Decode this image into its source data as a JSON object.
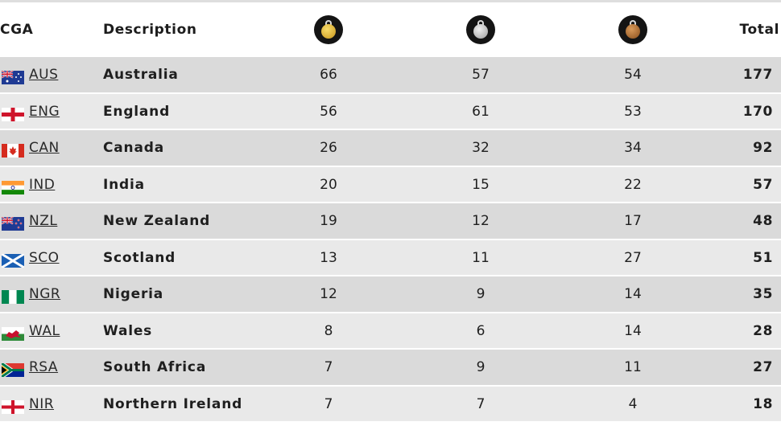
{
  "header": {
    "cga": "CGA",
    "description": "Description",
    "total": "Total",
    "gold_icon": "gold-medal-icon",
    "silver_icon": "silver-medal-icon",
    "bronze_icon": "bronze-medal-icon"
  },
  "rows": [
    {
      "code": "AUS",
      "country": "Australia",
      "gold": "66",
      "silver": "57",
      "bronze": "54",
      "total": "177",
      "flag": "australia-flag-icon"
    },
    {
      "code": "ENG",
      "country": "England",
      "gold": "56",
      "silver": "61",
      "bronze": "53",
      "total": "170",
      "flag": "england-flag-icon"
    },
    {
      "code": "CAN",
      "country": "Canada",
      "gold": "26",
      "silver": "32",
      "bronze": "34",
      "total": "92",
      "flag": "canada-flag-icon"
    },
    {
      "code": "IND",
      "country": "India",
      "gold": "20",
      "silver": "15",
      "bronze": "22",
      "total": "57",
      "flag": "india-flag-icon"
    },
    {
      "code": "NZL",
      "country": "New Zealand",
      "gold": "19",
      "silver": "12",
      "bronze": "17",
      "total": "48",
      "flag": "new-zealand-flag-icon"
    },
    {
      "code": "SCO",
      "country": "Scotland",
      "gold": "13",
      "silver": "11",
      "bronze": "27",
      "total": "51",
      "flag": "scotland-flag-icon"
    },
    {
      "code": "NGR",
      "country": "Nigeria",
      "gold": "12",
      "silver": "9",
      "bronze": "14",
      "total": "35",
      "flag": "nigeria-flag-icon"
    },
    {
      "code": "WAL",
      "country": "Wales",
      "gold": "8",
      "silver": "6",
      "bronze": "14",
      "total": "28",
      "flag": "wales-flag-icon"
    },
    {
      "code": "RSA",
      "country": "South Africa",
      "gold": "7",
      "silver": "9",
      "bronze": "11",
      "total": "27",
      "flag": "south-africa-flag-icon"
    },
    {
      "code": "NIR",
      "country": "Northern Ireland",
      "gold": "7",
      "silver": "7",
      "bronze": "4",
      "total": "18",
      "flag": "northern-ireland-flag-icon"
    }
  ]
}
